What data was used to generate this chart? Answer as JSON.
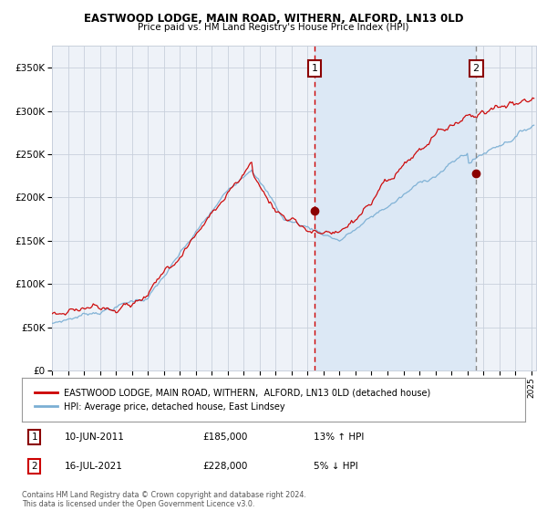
{
  "title1": "EASTWOOD LODGE, MAIN ROAD, WITHERN, ALFORD, LN13 0LD",
  "title2": "Price paid vs. HM Land Registry's House Price Index (HPI)",
  "xlim_start": 1995.0,
  "xlim_end": 2025.3,
  "ylim": [
    0,
    375000
  ],
  "yticks": [
    0,
    50000,
    100000,
    150000,
    200000,
    250000,
    300000,
    350000
  ],
  "ytick_labels": [
    "£0",
    "£50K",
    "£100K",
    "£150K",
    "£200K",
    "£250K",
    "£300K",
    "£350K"
  ],
  "sale1_date": 2011.44,
  "sale1_price": 185000,
  "sale2_date": 2021.54,
  "sale2_price": 228000,
  "legend_line1": "EASTWOOD LODGE, MAIN ROAD, WITHERN,  ALFORD, LN13 0LD (detached house)",
  "legend_line2": "HPI: Average price, detached house, East Lindsey",
  "table_row1": [
    "1",
    "10-JUN-2011",
    "£185,000",
    "13% ↑ HPI"
  ],
  "table_row2": [
    "2",
    "16-JUL-2021",
    "£228,000",
    "5% ↓ HPI"
  ],
  "footnote": "Contains HM Land Registry data © Crown copyright and database right 2024.\nThis data is licensed under the Open Government Licence v3.0.",
  "hpi_color": "#7bafd4",
  "price_color": "#cc0000",
  "vline1_color": "#cc0000",
  "vline2_color": "#888888",
  "shade_color": "#dce8f5",
  "grid_color": "#c8d0dc",
  "plot_bg": "#eef2f8"
}
